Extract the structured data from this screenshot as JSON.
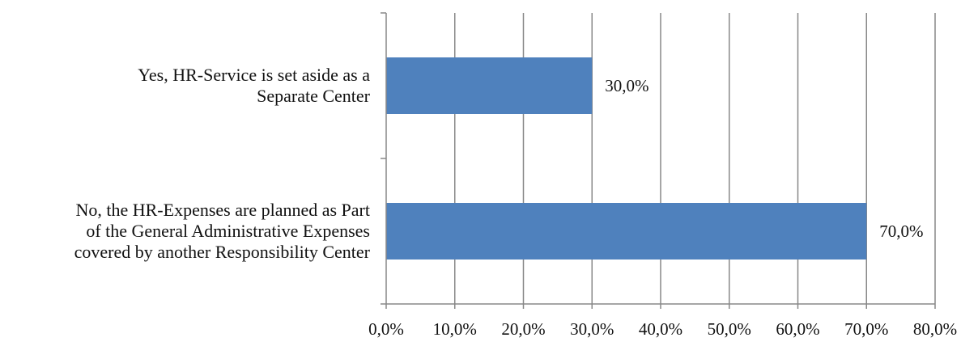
{
  "chart_data": {
    "type": "bar",
    "orientation": "horizontal",
    "title": "",
    "xlabel": "",
    "ylabel": "",
    "categories": [
      [
        "Yes, HR-Service is set aside as a",
        "Separate Center"
      ],
      [
        "No, the HR-Expenses are planned as Part",
        "of the General Administrative Expenses",
        "covered by another Responsibility Center"
      ]
    ],
    "values": [
      30.0,
      70.0
    ],
    "value_labels": [
      "30,0%",
      "70,0%"
    ],
    "xlim": [
      0,
      80
    ],
    "xticks": [
      0,
      10,
      20,
      30,
      40,
      50,
      60,
      70,
      80
    ],
    "xtick_labels": [
      "0,0%",
      "10,0%",
      "20,0%",
      "30,0%",
      "40,0%",
      "50,0%",
      "60,0%",
      "70,0%",
      "80,0%"
    ],
    "grid": true,
    "legend": "none",
    "colors": {
      "bar": "#4F81BD"
    }
  }
}
